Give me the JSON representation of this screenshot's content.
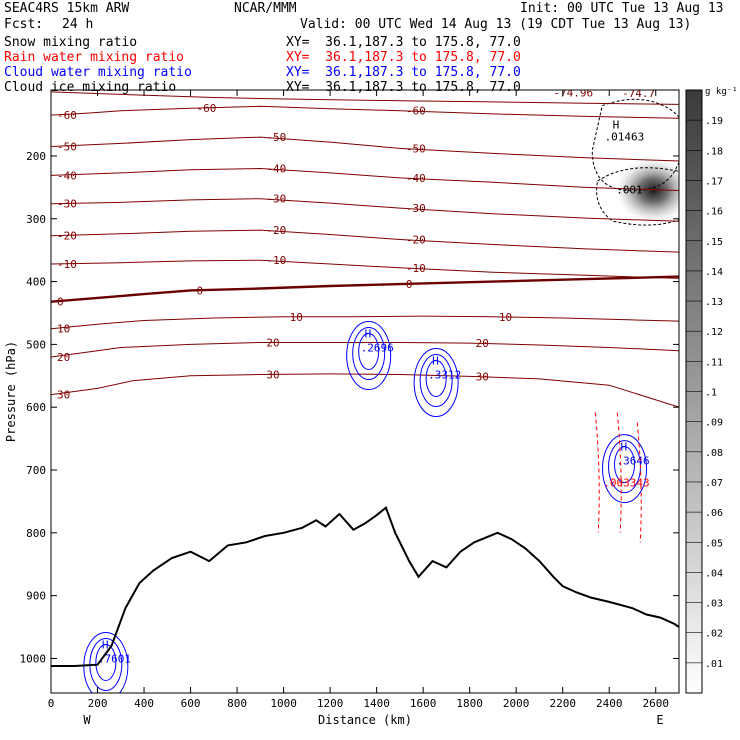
{
  "header": {
    "model": "SEAC4RS 15km ARW",
    "org": "NCAR/MMM",
    "init": "Init: 00 UTC Tue 13 Aug 13",
    "fcst_label": "Fcst:",
    "fcst_value": "24 h",
    "valid": "Valid: 00 UTC Wed 14 Aug 13 (19 CDT Tue 13 Aug 13)"
  },
  "fields": [
    {
      "label": "Snow mixing ratio",
      "xy": "XY=  36.1,187.3 to 175.8, 77.0",
      "color": "#000000"
    },
    {
      "label": "Rain water mixing ratio",
      "xy": "XY=  36.1,187.3 to 175.8, 77.0",
      "color": "#ff0000"
    },
    {
      "label": "Cloud water mixing ratio",
      "xy": "XY=  36.1,187.3 to 175.8, 77.0",
      "color": "#0000ff"
    },
    {
      "label": "Cloud ice mixing ratio",
      "xy": "XY=  36.1,187.3 to 175.8, 77.0",
      "color": "#000000"
    }
  ],
  "chart_data": {
    "type": "contour",
    "xlabel": "Distance (km)",
    "ylabel": "Pressure (hPa)",
    "xlim": [
      0,
      2700
    ],
    "ylim": [
      1050,
      100
    ],
    "x_ticks": [
      0,
      200,
      400,
      600,
      800,
      1000,
      1200,
      1400,
      1600,
      1800,
      2000,
      2200,
      2400,
      2600
    ],
    "y_ticks": [
      200,
      300,
      400,
      500,
      600,
      700,
      800,
      900,
      1000
    ],
    "y_tick_labels": [
      "200",
      "300",
      "400",
      "500",
      "600",
      "700",
      "800",
      "900",
      "1000"
    ],
    "direction_labels": {
      "left": "W",
      "right": "E"
    },
    "colorbar": {
      "unit": "g kg⁻¹",
      "ticks": [
        ".01",
        ".02",
        ".03",
        ".04",
        ".05",
        ".06",
        ".07",
        ".08",
        ".09",
        ".1",
        ".11",
        ".12",
        ".13",
        ".14",
        ".15",
        ".16",
        ".17",
        ".18",
        ".19"
      ]
    },
    "temperature_contours": {
      "color": "#800000",
      "zero_line_color": "#6b0000",
      "levels": [
        {
          "value": -70,
          "label": "",
          "points": [
            [
              0,
              98
            ],
            [
              300,
              102
            ],
            [
              700,
              107
            ],
            [
              1100,
              110
            ],
            [
              1500,
              112
            ],
            [
              1900,
              114
            ],
            [
              2300,
              116
            ],
            [
              2700,
              118
            ]
          ]
        },
        {
          "value": -60,
          "label": "-60",
          "points": [
            [
              0,
              135
            ],
            [
              150,
              132
            ],
            [
              300,
              128
            ],
            [
              600,
              124
            ],
            [
              900,
              121
            ],
            [
              1200,
              125
            ],
            [
              1500,
              128
            ],
            [
              1900,
              133
            ],
            [
              2300,
              137
            ],
            [
              2700,
              140
            ]
          ]
        },
        {
          "value": -50,
          "label": "-50",
          "points": [
            [
              0,
              185
            ],
            [
              300,
              180
            ],
            [
              600,
              174
            ],
            [
              900,
              170
            ],
            [
              1200,
              178
            ],
            [
              1500,
              188
            ],
            [
              1900,
              196
            ],
            [
              2300,
              203
            ],
            [
              2700,
              208
            ]
          ]
        },
        {
          "value": -40,
          "label": "-40",
          "points": [
            [
              0,
              231
            ],
            [
              300,
              227
            ],
            [
              600,
              222
            ],
            [
              900,
              220
            ],
            [
              1200,
              227
            ],
            [
              1500,
              235
            ],
            [
              1900,
              242
            ],
            [
              2300,
              250
            ],
            [
              2700,
              255
            ]
          ]
        },
        {
          "value": -30,
          "label": "-30",
          "points": [
            [
              0,
              276
            ],
            [
              300,
              274
            ],
            [
              600,
              270
            ],
            [
              900,
              268
            ],
            [
              1200,
              275
            ],
            [
              1500,
              283
            ],
            [
              1900,
              292
            ],
            [
              2300,
              299
            ],
            [
              2700,
              304
            ]
          ]
        },
        {
          "value": -20,
          "label": "-20",
          "points": [
            [
              0,
              327
            ],
            [
              300,
              324
            ],
            [
              600,
              320
            ],
            [
              900,
              318
            ],
            [
              1200,
              325
            ],
            [
              1500,
              333
            ],
            [
              1900,
              341
            ],
            [
              2300,
              348
            ],
            [
              2700,
              353
            ]
          ]
        },
        {
          "value": -10,
          "label": "-10",
          "points": [
            [
              0,
              372
            ],
            [
              300,
              370
            ],
            [
              600,
              367
            ],
            [
              900,
              366
            ],
            [
              1200,
              372
            ],
            [
              1500,
              378
            ],
            [
              1900,
              385
            ],
            [
              2300,
              390
            ],
            [
              2700,
              395
            ]
          ]
        },
        {
          "value": 0,
          "label": "0",
          "points": [
            [
              0,
              432
            ],
            [
              200,
              426
            ],
            [
              400,
              420
            ],
            [
              600,
              414
            ],
            [
              900,
              411
            ],
            [
              1200,
              407
            ],
            [
              1500,
              404
            ],
            [
              1900,
              400
            ],
            [
              2300,
              396
            ],
            [
              2700,
              392
            ]
          ]
        },
        {
          "value": 10,
          "label": "10",
          "points": [
            [
              0,
              475
            ],
            [
              200,
              468
            ],
            [
              400,
              462
            ],
            [
              700,
              458
            ],
            [
              1000,
              456
            ],
            [
              1300,
              456
            ],
            [
              1600,
              455
            ],
            [
              1900,
              456
            ],
            [
              2200,
              458
            ],
            [
              2500,
              461
            ],
            [
              2700,
              463
            ]
          ]
        },
        {
          "value": 20,
          "label": "20",
          "points": [
            [
              0,
              520
            ],
            [
              200,
              510
            ],
            [
              300,
              505
            ],
            [
              600,
              500
            ],
            [
              900,
              497
            ],
            [
              1200,
              497
            ],
            [
              1500,
              497
            ],
            [
              1800,
              498
            ],
            [
              2100,
              501
            ],
            [
              2400,
              505
            ],
            [
              2700,
              510
            ]
          ]
        },
        {
          "value": 30,
          "label": "30",
          "points": [
            [
              0,
              580
            ],
            [
              200,
              570
            ],
            [
              350,
              558
            ],
            [
              600,
              550
            ],
            [
              900,
              548
            ],
            [
              1200,
              547
            ],
            [
              1500,
              548
            ],
            [
              1800,
              551
            ],
            [
              2100,
              555
            ],
            [
              2400,
              565
            ],
            [
              2700,
              600
            ]
          ]
        }
      ],
      "extrema": [
        {
          "text": "-74.96",
          "x": 2160,
          "y": 99
        },
        {
          "text": "-74.7",
          "x": 2455,
          "y": 100
        }
      ]
    },
    "terrain": {
      "color": "#000000",
      "points": [
        [
          0,
          1012
        ],
        [
          100,
          1012
        ],
        [
          200,
          1010
        ],
        [
          260,
          980
        ],
        [
          320,
          920
        ],
        [
          380,
          880
        ],
        [
          440,
          860
        ],
        [
          520,
          840
        ],
        [
          600,
          830
        ],
        [
          680,
          845
        ],
        [
          760,
          820
        ],
        [
          840,
          815
        ],
        [
          920,
          805
        ],
        [
          1000,
          800
        ],
        [
          1080,
          792
        ],
        [
          1140,
          780
        ],
        [
          1180,
          790
        ],
        [
          1240,
          770
        ],
        [
          1300,
          795
        ],
        [
          1350,
          785
        ],
        [
          1400,
          772
        ],
        [
          1440,
          760
        ],
        [
          1480,
          800
        ],
        [
          1540,
          845
        ],
        [
          1580,
          870
        ],
        [
          1640,
          845
        ],
        [
          1700,
          855
        ],
        [
          1760,
          830
        ],
        [
          1820,
          815
        ],
        [
          1880,
          806
        ],
        [
          1920,
          800
        ],
        [
          1980,
          810
        ],
        [
          2040,
          825
        ],
        [
          2100,
          845
        ],
        [
          2160,
          870
        ],
        [
          2200,
          885
        ],
        [
          2260,
          895
        ],
        [
          2320,
          903
        ],
        [
          2400,
          910
        ],
        [
          2500,
          920
        ],
        [
          2560,
          930
        ],
        [
          2620,
          935
        ],
        [
          2680,
          945
        ],
        [
          2700,
          950
        ]
      ]
    },
    "cloud_ice": {
      "color": "#555555",
      "max_text": ".01463",
      "max_x": 2380,
      "max_y": 175,
      "min_text": ".001",
      "min_x": 2430,
      "min_y": 260,
      "shade_center": [
        2590,
        255
      ],
      "shade_peak": 0.19
    },
    "cloud_water": {
      "color": "#0000ff",
      "maxima": [
        {
          "text": ".2696",
          "x": 1340,
          "y": 505
        },
        {
          "text": ".3312",
          "x": 1630,
          "y": 548
        },
        {
          "text": ".3646",
          "x": 2440,
          "y": 685
        },
        {
          "text": ".7601",
          "x": 210,
          "y": 1000
        }
      ]
    },
    "rain_water": {
      "color": "#ff0000",
      "maxima": [
        {
          "text": ".003343",
          "x": 2400,
          "y": 720
        }
      ]
    }
  }
}
